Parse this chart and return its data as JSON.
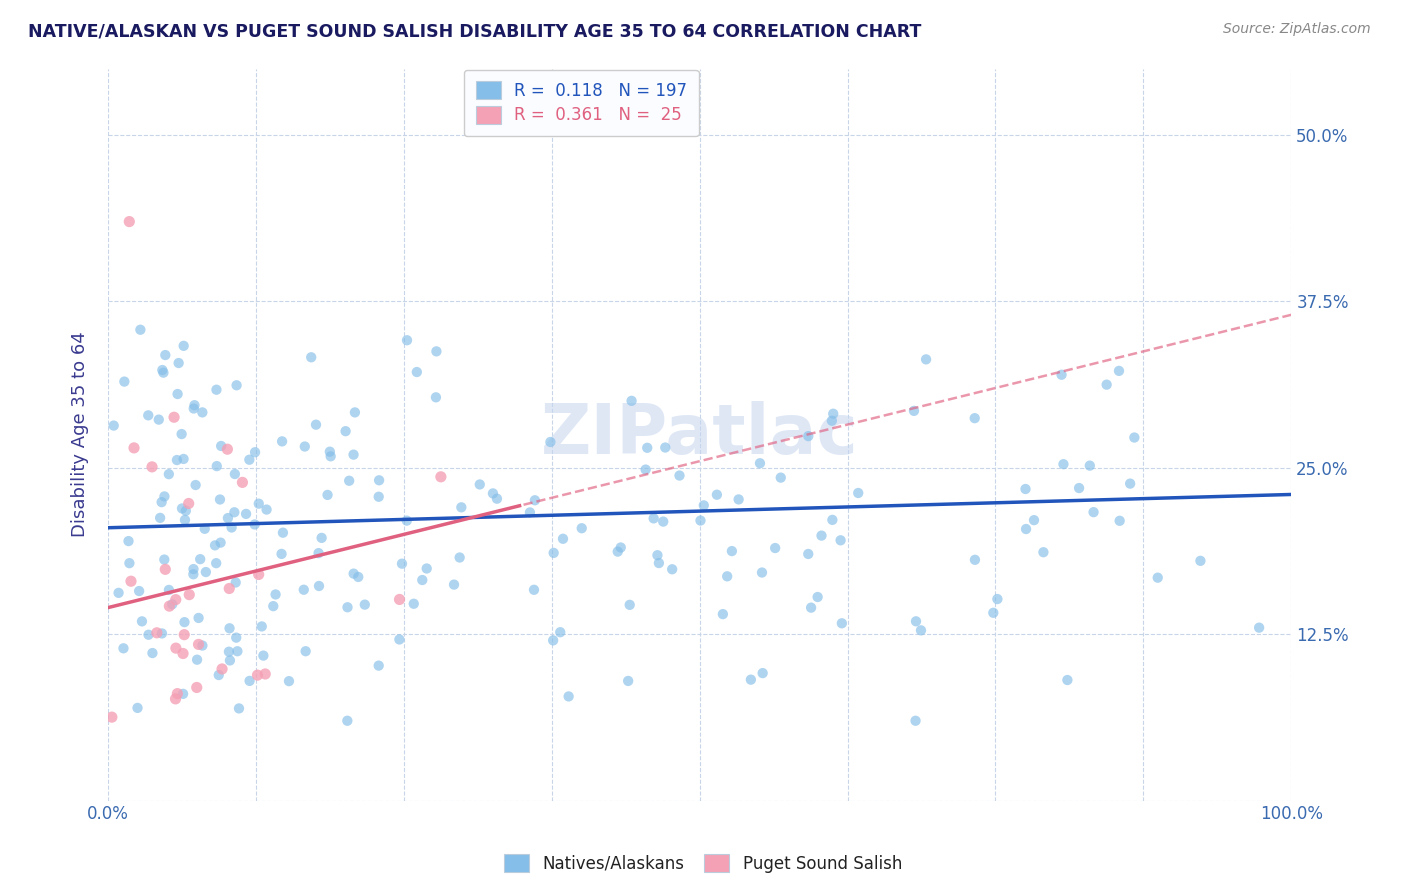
{
  "title": "NATIVE/ALASKAN VS PUGET SOUND SALISH DISABILITY AGE 35 TO 64 CORRELATION CHART",
  "source": "Source: ZipAtlas.com",
  "ylabel": "Disability Age 35 to 64",
  "xlim": [
    0.0,
    1.0
  ],
  "ylim": [
    0.0,
    0.55
  ],
  "xticks": [
    0.0,
    0.125,
    0.25,
    0.375,
    0.5,
    0.625,
    0.75,
    0.875,
    1.0
  ],
  "yticks": [
    0.0,
    0.125,
    0.25,
    0.375,
    0.5
  ],
  "xtick_labels": [
    "0.0%",
    "",
    "",
    "",
    "",
    "",
    "",
    "",
    "100.0%"
  ],
  "ytick_labels_right": [
    "",
    "12.5%",
    "25.0%",
    "37.5%",
    "50.0%"
  ],
  "blue_R": 0.118,
  "blue_N": 197,
  "pink_R": 0.361,
  "pink_N": 25,
  "blue_color": "#85BEE8",
  "pink_color": "#F4A0B5",
  "blue_line_color": "#2255BB",
  "pink_line_color": "#E06080",
  "title_color": "#1A1A60",
  "axis_label_color": "#3A3A90",
  "tick_label_color": "#3A6AB0",
  "watermark": "ZIPatlас",
  "watermark_color": "#C5D5EE",
  "background_color": "#FFFFFF",
  "grid_color": "#C8D5E8",
  "figsize": [
    14.06,
    8.92
  ],
  "dpi": 100,
  "blue_line_intercept": 0.205,
  "blue_line_slope": 0.025,
  "pink_line_intercept": 0.145,
  "pink_line_slope": 0.22
}
